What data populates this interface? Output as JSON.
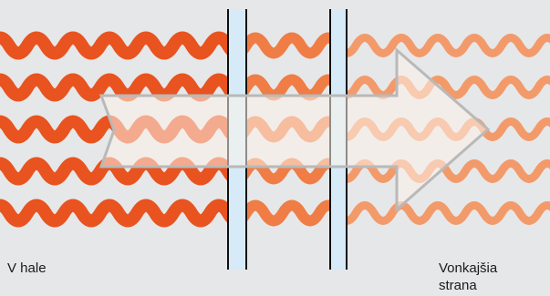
{
  "labels": {
    "inside": "V hale",
    "outside": "Vonkajšia strana"
  },
  "colors": {
    "background": "#e6e7e8",
    "wave_inside": "#e8531f",
    "wave_middle": "#ef7d45",
    "wave_outside": "#f39a6b",
    "glass_fill": "#d6eaf8",
    "glass_frame": "#111111",
    "arrow_fill": "#fbf3ea",
    "arrow_stroke": "#b9b9b9"
  },
  "diagram": {
    "wave_rows": 5,
    "glass_panes": 2,
    "arrow_direction": "right"
  }
}
